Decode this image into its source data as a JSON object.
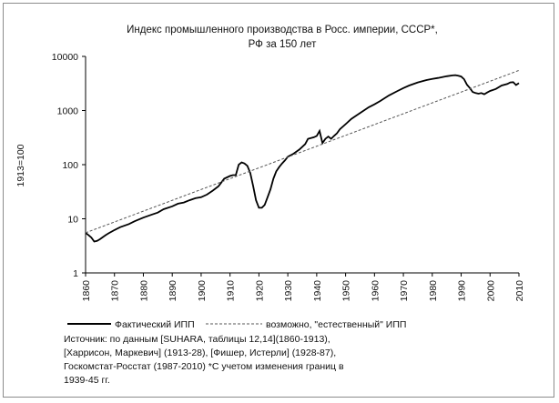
{
  "chart_data": {
    "type": "line",
    "title_line1": "Индекс промышленного производства в Росс. империи, СССР*,",
    "title_line2": "РФ за 150 лет",
    "ylabel": "1913=100",
    "xlabel": "",
    "y_scale": "log",
    "ylim": [
      1,
      10000
    ],
    "xlim": [
      1860,
      2010
    ],
    "y_ticks": [
      "1",
      "10",
      "100",
      "1000",
      "10000"
    ],
    "x_ticks": [
      "1860",
      "1870",
      "1880",
      "1890",
      "1900",
      "1910",
      "1920",
      "1930",
      "1940",
      "1950",
      "1960",
      "1970",
      "1980",
      "1990",
      "2000",
      "2010"
    ],
    "grid": false,
    "legend_position": "bottom",
    "series": [
      {
        "name": "Фактический ИПП",
        "color": "#000000",
        "style": "solid",
        "x": [
          1860,
          1861,
          1862,
          1863,
          1864,
          1865,
          1866,
          1867,
          1868,
          1870,
          1872,
          1875,
          1877,
          1880,
          1883,
          1885,
          1887,
          1890,
          1892,
          1894,
          1896,
          1898,
          1900,
          1902,
          1904,
          1906,
          1908,
          1910,
          1911,
          1912,
          1913,
          1914,
          1915,
          1916,
          1917,
          1918,
          1919,
          1920,
          1921,
          1922,
          1923,
          1924,
          1925,
          1926,
          1927,
          1928,
          1929,
          1930,
          1932,
          1934,
          1936,
          1937,
          1938,
          1939,
          1940,
          1941,
          1942,
          1943,
          1944,
          1945,
          1946,
          1947,
          1948,
          1950,
          1952,
          1955,
          1958,
          1960,
          1962,
          1965,
          1968,
          1970,
          1972,
          1975,
          1978,
          1980,
          1982,
          1985,
          1987,
          1988,
          1989,
          1990,
          1991,
          1992,
          1993,
          1994,
          1995,
          1996,
          1997,
          1998,
          1999,
          2000,
          2002,
          2004,
          2006,
          2007,
          2008,
          2009,
          2010
        ],
        "values": [
          5.5,
          5.0,
          4.5,
          3.8,
          3.9,
          4.2,
          4.6,
          5.0,
          5.4,
          6.2,
          7.0,
          8.0,
          9.0,
          10.5,
          12,
          13,
          15,
          17,
          19,
          20,
          22,
          24,
          25,
          28,
          33,
          40,
          55,
          62,
          64,
          64,
          100,
          110,
          105,
          95,
          70,
          40,
          22,
          16,
          16,
          18,
          25,
          35,
          55,
          75,
          90,
          105,
          120,
          140,
          160,
          190,
          240,
          300,
          310,
          320,
          340,
          420,
          250,
          300,
          330,
          300,
          340,
          380,
          450,
          560,
          700,
          900,
          1150,
          1300,
          1500,
          1900,
          2300,
          2600,
          2900,
          3300,
          3650,
          3850,
          4000,
          4300,
          4450,
          4500,
          4400,
          4250,
          3800,
          3000,
          2600,
          2200,
          2100,
          2050,
          2100,
          2000,
          2150,
          2300,
          2500,
          2900,
          3100,
          3300,
          3350,
          2950,
          3200
        ]
      },
      {
        "name": "возможно, \"естественный\" ИПП",
        "color": "#555555",
        "style": "dashed",
        "x": [
          1860,
          2010
        ],
        "values": [
          5.5,
          5500
        ]
      }
    ]
  },
  "legend": {
    "actual_label": "Фактический ИПП",
    "natural_label": "возможно, \"естественный\" ИПП"
  },
  "source_note": {
    "line1": "Источник: по данным [SUHARA, таблицы 12,14](1860-1913),",
    "line2": "[Харрисон, Маркевич] (1913-28), [Фишер, Истерли] (1928-87),",
    "line3": "Госкомстат-Росстат (1987-2010) *С учетом изменения границ в",
    "line4": "1939-45 гг."
  }
}
